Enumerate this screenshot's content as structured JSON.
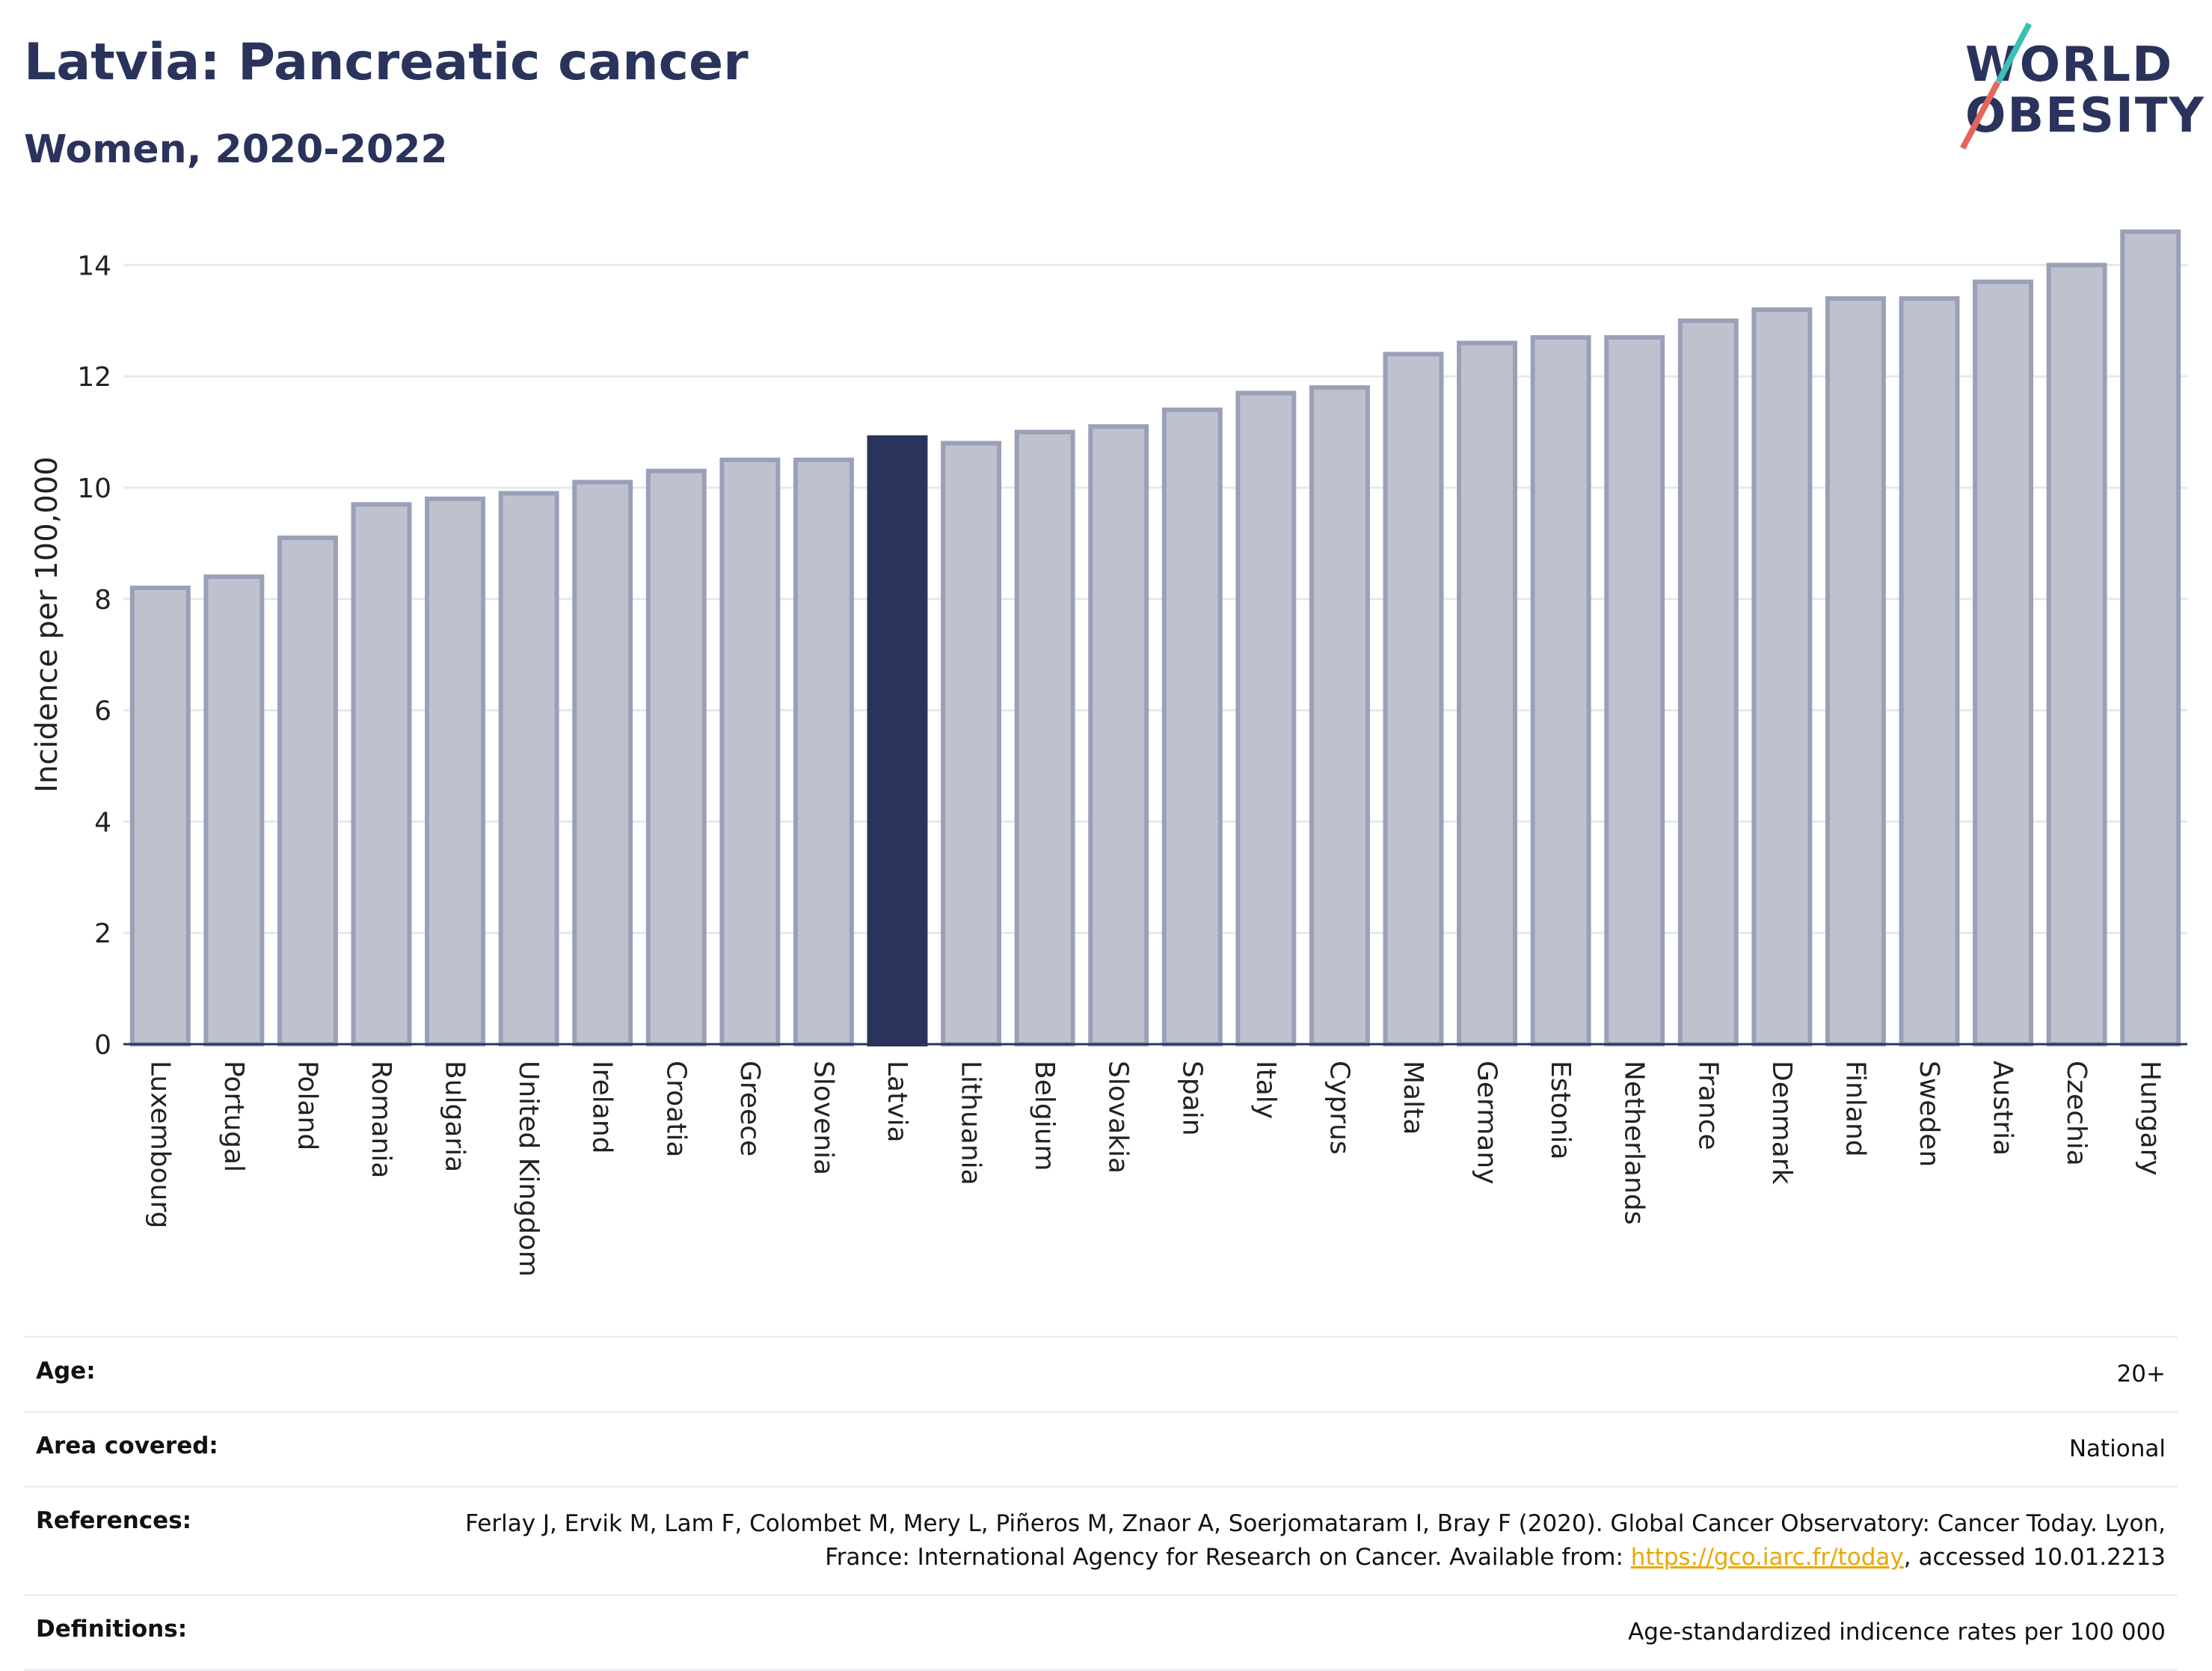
{
  "header": {
    "title": "Latvia: Pancreatic cancer",
    "subtitle": "Women, 2020-2022",
    "logo_line1": "WORLD",
    "logo_line2": "OBESITY"
  },
  "colors": {
    "highlight": "#2a335c",
    "bar_fill": "#bfc2ce",
    "bar_stroke": "#9aa0b8",
    "grid": "#e6e8ee",
    "link": "#e8a800"
  },
  "chart_data": {
    "type": "bar",
    "title": "Latvia: Pancreatic cancer",
    "subtitle": "Women, 2020-2022",
    "xlabel": "",
    "ylabel": "Incidence per 100,000",
    "ylim": [
      0,
      15
    ],
    "yticks": [
      0,
      2,
      4,
      6,
      8,
      10,
      12,
      14
    ],
    "grid": true,
    "highlight_category": "Latvia",
    "categories": [
      "Luxembourg",
      "Portugal",
      "Poland",
      "Romania",
      "Bulgaria",
      "United Kingdom",
      "Ireland",
      "Croatia",
      "Greece",
      "Slovenia",
      "Latvia",
      "Lithuania",
      "Belgium",
      "Slovakia",
      "Spain",
      "Italy",
      "Cyprus",
      "Malta",
      "Germany",
      "Estonia",
      "Netherlands",
      "France",
      "Denmark",
      "Finland",
      "Sweden",
      "Austria",
      "Czechia",
      "Hungary"
    ],
    "values": [
      8.2,
      8.4,
      9.1,
      9.7,
      9.8,
      9.9,
      10.1,
      10.3,
      10.5,
      10.5,
      10.9,
      10.8,
      11.0,
      11.1,
      11.4,
      11.7,
      11.8,
      12.4,
      12.6,
      12.7,
      12.7,
      13.0,
      13.2,
      13.4,
      13.4,
      13.7,
      14.0,
      14.6
    ]
  },
  "info": {
    "age_label": "Age:",
    "age_value": "20+",
    "area_label": "Area covered:",
    "area_value": "National",
    "references_label": "References:",
    "references_text_1": "Ferlay J, Ervik M, Lam F, Colombet M, Mery L, Piñeros M, Znaor A, Soerjomataram I, Bray F (2020). Global Cancer Observatory: Cancer Today. Lyon, France: International Agency for Research on Cancer. Available from: ",
    "references_link": "https://gco.iarc.fr/today",
    "references_text_2": ", accessed 10.01.2213",
    "definitions_label": "Definitions:",
    "definitions_value": "Age-standardized indicence rates per 100 000"
  }
}
